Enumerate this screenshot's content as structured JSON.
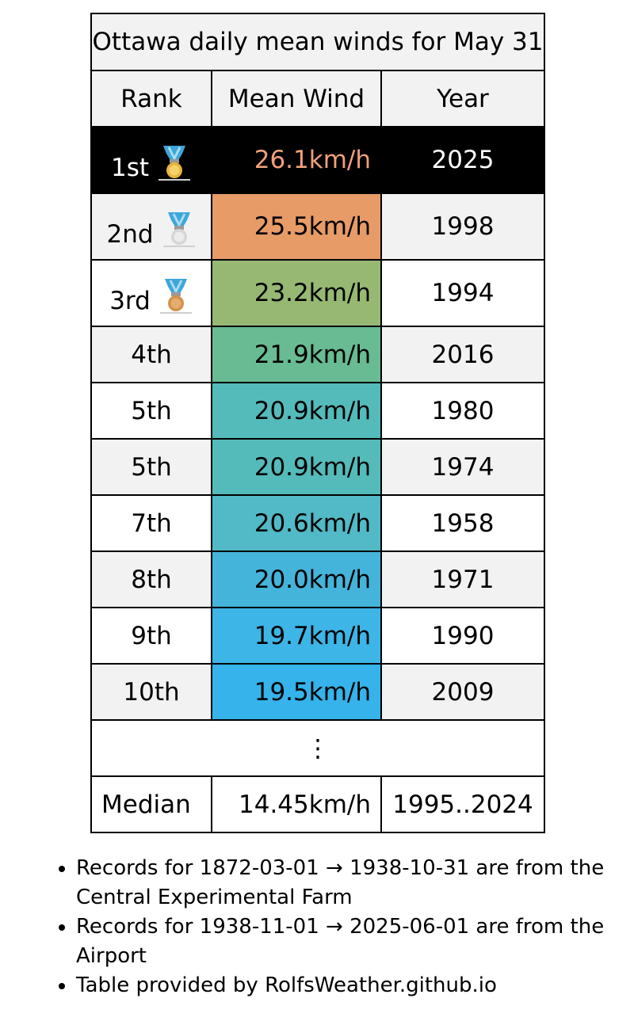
{
  "table": {
    "title": "Ottawa daily mean winds for May 31",
    "headers": {
      "rank": "Rank",
      "wind": "Mean Wind",
      "year": "Year"
    },
    "rows": [
      {
        "rank": "1st",
        "wind": "26.1km/h",
        "year": "2025",
        "medal": "gold-medal-icon",
        "bg": "#000000"
      },
      {
        "rank": "2nd",
        "wind": "25.5km/h",
        "year": "1998",
        "medal": "silver-medal-icon",
        "bg": "#e79b66"
      },
      {
        "rank": "3rd",
        "wind": "23.2km/h",
        "year": "1994",
        "medal": "bronze-medal-icon",
        "bg": "#97b872"
      },
      {
        "rank": "4th",
        "wind": "21.9km/h",
        "year": "2016",
        "bg": "#68bb92"
      },
      {
        "rank": "5th",
        "wind": "20.9km/h",
        "year": "1980",
        "bg": "#54bbba"
      },
      {
        "rank": "5th",
        "wind": "20.9km/h",
        "year": "1974",
        "bg": "#54bbba"
      },
      {
        "rank": "7th",
        "wind": "20.6km/h",
        "year": "1958",
        "bg": "#52b9c6"
      },
      {
        "rank": "8th",
        "wind": "20.0km/h",
        "year": "1971",
        "bg": "#45b4da"
      },
      {
        "rank": "9th",
        "wind": "19.7km/h",
        "year": "1990",
        "bg": "#3db5e6"
      },
      {
        "rank": "10th",
        "wind": "19.5km/h",
        "year": "2009",
        "bg": "#35b3ea"
      }
    ],
    "ellipsis": "⋮",
    "median": {
      "label": "Median",
      "wind": "14.45km/h",
      "years": "1995..2024"
    }
  },
  "notes": [
    "Records for 1872-03-01 → 1938-10-31 are from the Central Experimental Farm",
    "Records for 1938-11-01 → 2025-06-01 are from the Airport",
    "Table provided by RolfsWeather.github.io"
  ]
}
